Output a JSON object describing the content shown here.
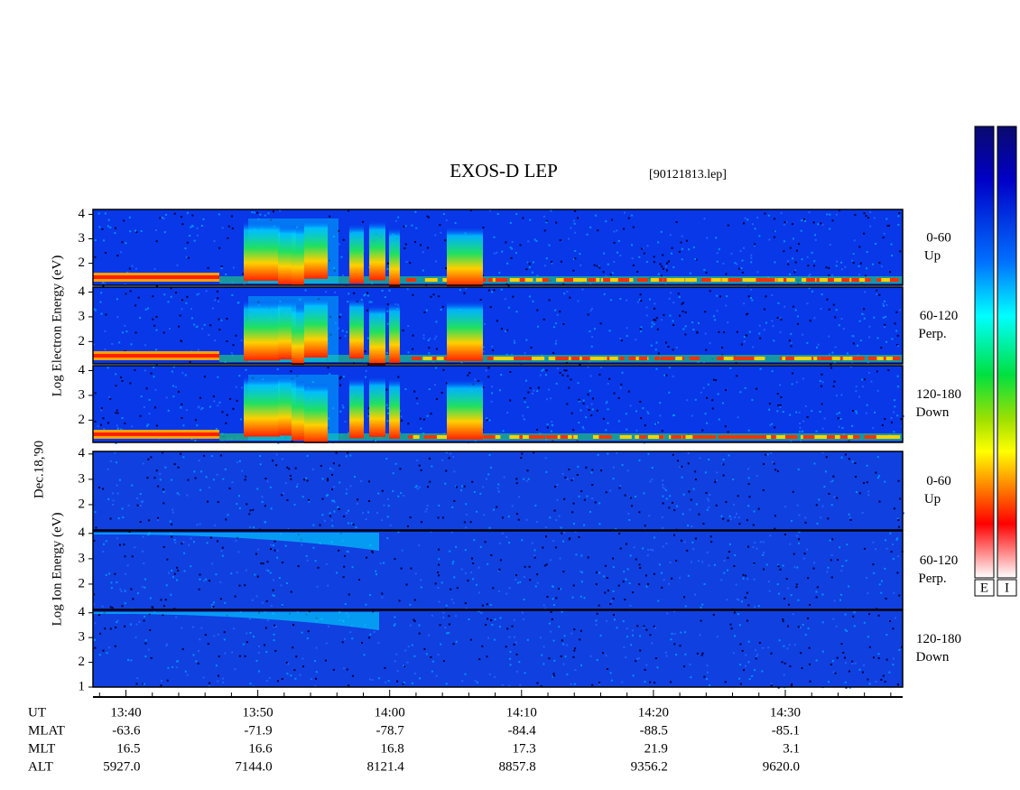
{
  "chart_data": {
    "type": "spectrogram",
    "title": "EXOS-D LEP",
    "file": "[90121813.lep]",
    "date": "Dec.18,'90",
    "xlim": [
      817.5,
      878.9
    ],
    "xticks": [
      {
        "value": 820,
        "label": "13:40"
      },
      {
        "value": 830,
        "label": "13:50"
      },
      {
        "value": 840,
        "label": "14:00"
      },
      {
        "value": 850,
        "label": "14:10"
      },
      {
        "value": 860,
        "label": "14:20"
      },
      {
        "value": 870,
        "label": "14:30"
      }
    ],
    "minor_xticks": [
      818,
      822,
      824,
      826,
      828,
      832,
      834,
      836,
      838,
      842,
      844,
      846,
      848,
      852,
      854,
      856,
      858,
      862,
      864,
      866,
      868,
      872,
      874,
      876,
      878
    ],
    "x_row_name": "UT",
    "rows": [
      {
        "name": "MLAT",
        "values": [
          "-63.6",
          "-71.9",
          "-78.7",
          "-84.4",
          "-88.5",
          "-85.1"
        ]
      },
      {
        "name": "MLT",
        "values": [
          "16.5",
          "16.6",
          "16.8",
          "17.3",
          "21.9",
          "3.1"
        ]
      },
      {
        "name": "ALT",
        "values": [
          "5927.0",
          "7144.0",
          "8121.4",
          "8857.8",
          "9356.2",
          "9620.0"
        ]
      }
    ],
    "groups": [
      {
        "name": "Log Electron Energy (eV)",
        "species": "electron",
        "panels": [
          {
            "angle": "0-60",
            "direction": "Up",
            "ylim": [
              1.1,
              4.2
            ],
            "yticks": [
              2,
              3,
              4
            ]
          },
          {
            "angle": "60-120",
            "direction": "Perp.",
            "ylim": [
              1.1,
              4.2
            ],
            "yticks": [
              2,
              3,
              4
            ]
          },
          {
            "angle": "120-180",
            "direction": "Down",
            "ylim": [
              1.1,
              4.2
            ],
            "yticks": [
              2,
              3,
              4
            ]
          }
        ]
      },
      {
        "name": "Log Ion Energy (eV)",
        "species": "ion",
        "panels": [
          {
            "angle": "0-60",
            "direction": "Up",
            "ylim": [
              1.0,
              4.1
            ],
            "yticks": [
              2,
              3,
              4
            ]
          },
          {
            "angle": "60-120",
            "direction": "Perp.",
            "ylim": [
              1.0,
              4.1
            ],
            "yticks": [
              2,
              3,
              4
            ]
          },
          {
            "angle": "120-180",
            "direction": "Down",
            "ylim": [
              1.0,
              4.1
            ],
            "yticks": [
              1,
              2,
              3,
              4
            ]
          }
        ]
      }
    ],
    "colorbars": [
      "E",
      "I"
    ]
  }
}
